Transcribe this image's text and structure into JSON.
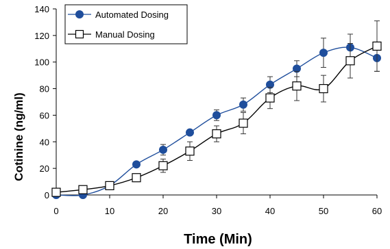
{
  "chart_data": {
    "type": "line",
    "xlabel": "Time (Min)",
    "ylabel": "Cotinine (ng/ml)",
    "xlim": [
      0,
      60
    ],
    "ylim": [
      0,
      140
    ],
    "xticks": [
      0,
      10,
      20,
      30,
      40,
      50,
      60
    ],
    "yticks": [
      0,
      20,
      40,
      60,
      80,
      100,
      120,
      140
    ],
    "grid": false,
    "legend_position": "top-left",
    "series": [
      {
        "name": "Automated Dosing",
        "marker": "filled-circle",
        "color": "#1f4e9c",
        "x": [
          0,
          5,
          10,
          15,
          20,
          25,
          30,
          35,
          40,
          45,
          50,
          55,
          60
        ],
        "y": [
          0,
          0,
          7,
          23,
          34,
          47,
          60,
          68,
          83,
          95,
          107,
          111,
          103
        ],
        "err": [
          0,
          0,
          1,
          2,
          4,
          2,
          4,
          5,
          6,
          6,
          11,
          10,
          10
        ]
      },
      {
        "name": "Manual Dosing",
        "marker": "open-square",
        "color": "#000000",
        "x": [
          0,
          5,
          10,
          15,
          20,
          25,
          30,
          35,
          40,
          45,
          50,
          55,
          60
        ],
        "y": [
          2,
          4,
          7,
          13,
          22,
          33,
          46,
          54,
          73,
          82,
          80,
          101,
          112
        ],
        "err": [
          1,
          1,
          1,
          3,
          5,
          7,
          6,
          8,
          8,
          11,
          10,
          13,
          19
        ]
      }
    ]
  }
}
